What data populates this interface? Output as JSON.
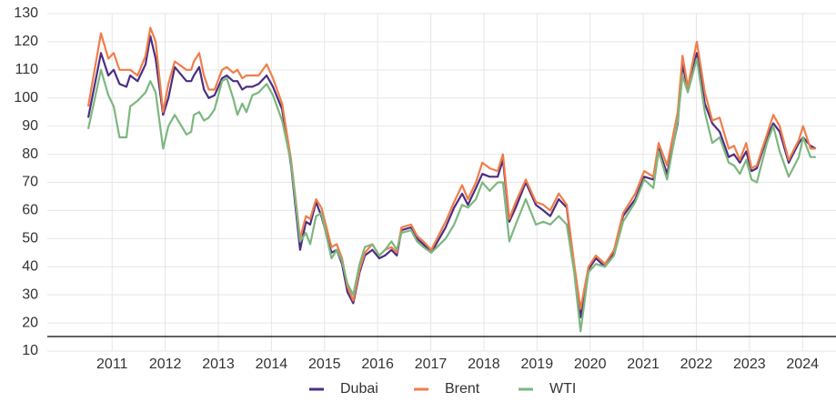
{
  "chart_data": {
    "type": "line",
    "x": [
      2010.55,
      2010.79,
      2010.93,
      2011.03,
      2011.14,
      2011.27,
      2011.34,
      2011.48,
      2011.63,
      2011.72,
      2011.82,
      2011.96,
      2012.06,
      2012.18,
      2012.4,
      2012.49,
      2012.54,
      2012.64,
      2012.73,
      2012.82,
      2012.93,
      2013.07,
      2013.16,
      2013.28,
      2013.36,
      2013.45,
      2013.53,
      2013.64,
      2013.76,
      2013.91,
      2014.03,
      2014.2,
      2014.37,
      2014.54,
      2014.65,
      2014.73,
      2014.84,
      2014.94,
      2015.13,
      2015.23,
      2015.33,
      2015.43,
      2015.54,
      2015.66,
      2015.76,
      2015.9,
      2016.03,
      2016.14,
      2016.26,
      2016.36,
      2016.45,
      2016.63,
      2016.74,
      2016.86,
      2017.01,
      2017.28,
      2017.44,
      2017.59,
      2017.7,
      2017.85,
      2017.97,
      2018.11,
      2018.26,
      2018.36,
      2018.48,
      2018.6,
      2018.79,
      2018.98,
      2019.12,
      2019.25,
      2019.41,
      2019.56,
      2019.7,
      2019.82,
      2019.97,
      2020.11,
      2020.28,
      2020.45,
      2020.62,
      2020.85,
      2021.02,
      2021.19,
      2021.29,
      2021.45,
      2021.65,
      2021.74,
      2021.84,
      2022.01,
      2022.16,
      2022.3,
      2022.44,
      2022.61,
      2022.71,
      2022.82,
      2022.94,
      2023.04,
      2023.14,
      2023.33,
      2023.45,
      2023.57,
      2023.74,
      2023.93,
      2024.01,
      2024.15,
      2024.25
    ],
    "series": [
      {
        "name": "Dubai",
        "color": "#4b2e83",
        "values": [
          93,
          116,
          108,
          110,
          105,
          104,
          108,
          106,
          112,
          122,
          114,
          94,
          100,
          111,
          106,
          106,
          108,
          111,
          103,
          100,
          101,
          107,
          108,
          106,
          106,
          103,
          104,
          104,
          105,
          108,
          104,
          96,
          76,
          46,
          56,
          55,
          63,
          58,
          45,
          46,
          41,
          31,
          27,
          38,
          44,
          46,
          43,
          44,
          46,
          44,
          53,
          54,
          50,
          48,
          45,
          54,
          61,
          66,
          62,
          68,
          73,
          72,
          72,
          78,
          56,
          61,
          70,
          62,
          60,
          58,
          64,
          61,
          40,
          22,
          39,
          43,
          40,
          45,
          58,
          64,
          72,
          71,
          82,
          73,
          91,
          112,
          103,
          116,
          98,
          91,
          88,
          79,
          80,
          77,
          81,
          74,
          75,
          86,
          91,
          88,
          77,
          84,
          86,
          83,
          82
        ]
      },
      {
        "name": "Brent",
        "color": "#f07d4a",
        "values": [
          97,
          123,
          114,
          116,
          110,
          110,
          110,
          108,
          115,
          125,
          120,
          95,
          105,
          113,
          110,
          110,
          113,
          116,
          108,
          103,
          103,
          110,
          111,
          109,
          110,
          107,
          108,
          108,
          108,
          112,
          107,
          98,
          78,
          50,
          58,
          57,
          64,
          61,
          47,
          48,
          43,
          33,
          28,
          39,
          45,
          48,
          44,
          46,
          47,
          45,
          54,
          55,
          51,
          49,
          46,
          56,
          63,
          69,
          64,
          70,
          77,
          75,
          74,
          80,
          57,
          63,
          71,
          63,
          62,
          60,
          66,
          62,
          41,
          25,
          40,
          44,
          41,
          46,
          59,
          66,
          74,
          72,
          84,
          76,
          95,
          115,
          104,
          120,
          102,
          92,
          93,
          82,
          83,
          78,
          84,
          75,
          76,
          87,
          94,
          90,
          78,
          85,
          90,
          82,
          82
        ]
      },
      {
        "name": "WTI",
        "color": "#7db77f",
        "values": [
          89,
          110,
          101,
          97,
          86,
          86,
          97,
          99,
          102,
          106,
          102,
          82,
          90,
          94,
          87,
          88,
          94,
          95,
          92,
          93,
          96,
          106,
          107,
          100,
          94,
          98,
          95,
          101,
          102,
          105,
          101,
          92,
          77,
          49,
          52,
          48,
          58,
          59,
          43,
          46,
          42,
          34,
          30,
          41,
          47,
          48,
          44,
          46,
          49,
          46,
          52,
          53,
          49,
          47,
          45,
          50,
          55,
          62,
          61,
          64,
          70,
          67,
          70,
          70,
          49,
          55,
          64,
          55,
          56,
          55,
          58,
          55,
          38,
          17,
          38,
          41,
          40,
          44,
          56,
          63,
          71,
          68,
          81,
          71,
          92,
          108,
          102,
          114,
          95,
          84,
          86,
          77,
          76,
          73,
          78,
          71,
          70,
          84,
          90,
          81,
          72,
          79,
          86,
          79,
          79
        ]
      }
    ],
    "xlim": [
      2009.78,
      2024.63
    ],
    "xticks": [
      2011,
      2012,
      2013,
      2014,
      2015,
      2016,
      2017,
      2018,
      2019,
      2020,
      2021,
      2022,
      2023,
      2024
    ],
    "ylim": [
      10,
      130
    ],
    "yticks": [
      10,
      20,
      30,
      40,
      50,
      60,
      70,
      80,
      90,
      100,
      110,
      120,
      130
    ],
    "grid": true,
    "legend": "bottom"
  }
}
